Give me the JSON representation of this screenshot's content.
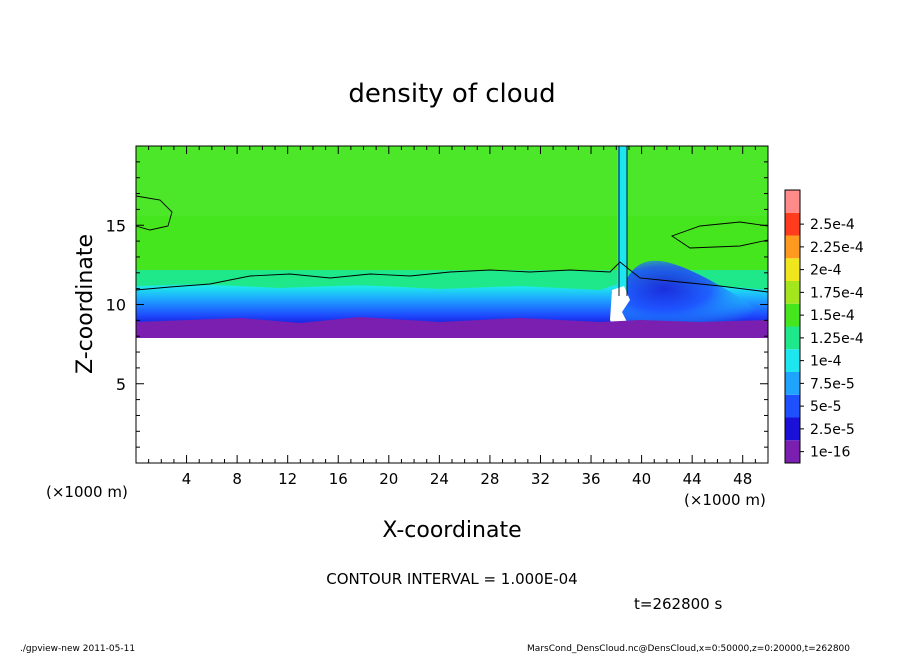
{
  "chart_data": {
    "type": "heatmap",
    "title": "density of cloud",
    "xlabel": "X-coordinate",
    "ylabel": "Z-coordinate",
    "x_unit": "(×1000 m)",
    "y_unit": "(×1000 m)",
    "xlim": [
      0,
      50
    ],
    "ylim": [
      0,
      20
    ],
    "x_ticks": [
      4,
      8,
      12,
      16,
      20,
      24,
      28,
      32,
      36,
      40,
      44,
      48
    ],
    "y_ticks": [
      5,
      10,
      15
    ],
    "colorbar": {
      "levels": [
        "1e-16",
        "2.5e-5",
        "5e-5",
        "7.5e-5",
        "1e-4",
        "1.25e-4",
        "1.5e-4",
        "1.75e-4",
        "2e-4",
        "2.25e-4",
        "2.5e-4"
      ],
      "colors": [
        "#7a1fb0",
        "#1a10d8",
        "#1e50ff",
        "#1ea4ff",
        "#1ee6ee",
        "#1ee88a",
        "#46e61e",
        "#a4e61e",
        "#f0e61e",
        "#ff9a1e",
        "#ff3c1e",
        "#ff8a8a"
      ]
    },
    "contour_level": "1.000E-04",
    "cloud_base_km": 8.0,
    "cloud_top_km": 20.0,
    "time_s": 262800
  },
  "annotations": {
    "contour_interval": "CONTOUR INTERVAL = 1.000E-04",
    "time_label": "t=262800 s",
    "footer_left": "./gpview-new   2011-05-11",
    "footer_right": "MarsCond_DensCloud.nc@DensCloud,x=0:50000,z=0:20000,t=262800"
  }
}
